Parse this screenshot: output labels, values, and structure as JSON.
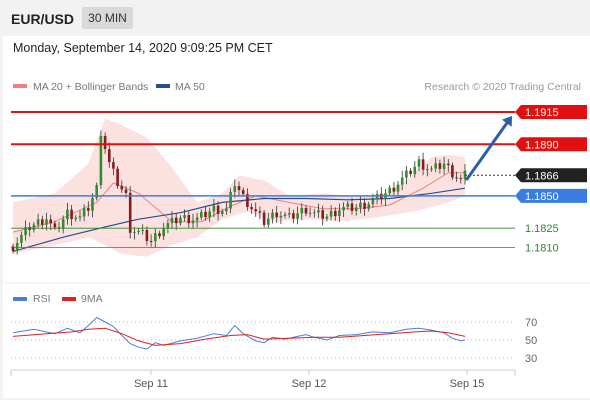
{
  "header": {
    "pair": "EUR/USD",
    "timeframe": "30 MIN"
  },
  "datetime": "Monday, September 14, 2020 9:09:25 PM CET",
  "credit": "Research © 2020 Trading Central",
  "legend": {
    "ma_bb": "MA 20 + Bollinger Bands",
    "ma50": "MA 50",
    "rsi": "RSI",
    "ma9": "9MA"
  },
  "colors": {
    "resistance": "#e01010",
    "support": "#3a7de0",
    "target_green": "#2a8a2a",
    "ma20": "#f08080",
    "bollinger_fill": "#fcdcdc",
    "ma50": "#2a4e8c",
    "arrow": "#2a5ea8",
    "rsi": "#4a7fd8",
    "ma9": "#e02020",
    "bull_candle": "#2f8f2f",
    "bear_candle": "#8b1a1a"
  },
  "chart_data": {
    "type": "candlestick",
    "instrument": "EUR/USD",
    "timeframe": "30 MIN",
    "x_tick_labels": [
      "Sep 11",
      "Sep 12",
      "Sep 15"
    ],
    "price_range": [
      1.1805,
      1.1922
    ],
    "levels": [
      {
        "label": "1.1915",
        "value": 1.1915,
        "kind": "resistance"
      },
      {
        "label": "1.1890",
        "value": 1.189,
        "kind": "resistance"
      },
      {
        "label": "1.1866",
        "value": 1.1866,
        "kind": "last"
      },
      {
        "label": "1.1850",
        "value": 1.185,
        "kind": "support"
      },
      {
        "label": "1.1825",
        "value": 1.1825,
        "kind": "target"
      },
      {
        "label": "1.1810",
        "value": 1.181,
        "kind": "target"
      }
    ],
    "arrow": {
      "from": 1.1863,
      "to": 1.1912,
      "direction": "up"
    },
    "close_path": [
      [
        0,
        1.1811
      ],
      [
        4,
        1.1826
      ],
      [
        8,
        1.1833
      ],
      [
        10,
        1.1822
      ],
      [
        13,
        1.1837
      ],
      [
        16,
        1.1833
      ],
      [
        18,
        1.1841
      ],
      [
        20,
        1.1856
      ],
      [
        21,
        1.19
      ],
      [
        23,
        1.1875
      ],
      [
        25,
        1.186
      ],
      [
        27,
        1.185
      ],
      [
        28,
        1.1825
      ],
      [
        31,
        1.182
      ],
      [
        33,
        1.1815
      ],
      [
        36,
        1.1826
      ],
      [
        40,
        1.1833
      ],
      [
        44,
        1.1832
      ],
      [
        48,
        1.184
      ],
      [
        51,
        1.1839
      ],
      [
        53,
        1.186
      ],
      [
        55,
        1.1849
      ],
      [
        58,
        1.1837
      ],
      [
        60,
        1.183
      ],
      [
        63,
        1.1837
      ],
      [
        66,
        1.1833
      ],
      [
        70,
        1.184
      ],
      [
        72,
        1.1836
      ],
      [
        75,
        1.1834
      ],
      [
        78,
        1.184
      ],
      [
        82,
        1.1841
      ],
      [
        86,
        1.1846
      ],
      [
        90,
        1.1854
      ],
      [
        94,
        1.1866
      ],
      [
        97,
        1.1876
      ],
      [
        100,
        1.187
      ],
      [
        103,
        1.1875
      ],
      [
        105,
        1.1868
      ],
      [
        107,
        1.1862
      ],
      [
        108,
        1.1866
      ]
    ],
    "ma20_path": [
      [
        0,
        1.1822
      ],
      [
        10,
        1.183
      ],
      [
        20,
        1.1845
      ],
      [
        24,
        1.186
      ],
      [
        30,
        1.1852
      ],
      [
        38,
        1.183
      ],
      [
        45,
        1.183
      ],
      [
        52,
        1.1842
      ],
      [
        58,
        1.185
      ],
      [
        66,
        1.1845
      ],
      [
        74,
        1.184
      ],
      [
        82,
        1.184
      ],
      [
        90,
        1.1843
      ],
      [
        98,
        1.1856
      ],
      [
        104,
        1.1868
      ],
      [
        108,
        1.1868
      ]
    ],
    "bb_upper_path": [
      [
        0,
        1.1845
      ],
      [
        10,
        1.1852
      ],
      [
        18,
        1.1875
      ],
      [
        22,
        1.191
      ],
      [
        26,
        1.1905
      ],
      [
        32,
        1.1895
      ],
      [
        38,
        1.1872
      ],
      [
        44,
        1.1845
      ],
      [
        50,
        1.1852
      ],
      [
        54,
        1.1866
      ],
      [
        60,
        1.1862
      ],
      [
        66,
        1.185
      ],
      [
        74,
        1.1852
      ],
      [
        80,
        1.185
      ],
      [
        88,
        1.1851
      ],
      [
        94,
        1.1862
      ],
      [
        100,
        1.188
      ],
      [
        104,
        1.1882
      ],
      [
        108,
        1.188
      ]
    ],
    "bb_lower_path": [
      [
        0,
        1.1805
      ],
      [
        10,
        1.1812
      ],
      [
        18,
        1.1818
      ],
      [
        22,
        1.1812
      ],
      [
        26,
        1.1805
      ],
      [
        32,
        1.1803
      ],
      [
        38,
        1.1812
      ],
      [
        44,
        1.1818
      ],
      [
        50,
        1.1832
      ],
      [
        56,
        1.1838
      ],
      [
        62,
        1.183
      ],
      [
        70,
        1.1832
      ],
      [
        78,
        1.183
      ],
      [
        88,
        1.1834
      ],
      [
        96,
        1.1838
      ],
      [
        104,
        1.1845
      ],
      [
        108,
        1.185
      ]
    ],
    "ma50_path": [
      [
        0,
        1.1807
      ],
      [
        12,
        1.1818
      ],
      [
        22,
        1.1826
      ],
      [
        30,
        1.1832
      ],
      [
        40,
        1.1837
      ],
      [
        50,
        1.1845
      ],
      [
        60,
        1.1848
      ],
      [
        70,
        1.1848
      ],
      [
        80,
        1.1847
      ],
      [
        90,
        1.1848
      ],
      [
        100,
        1.1852
      ],
      [
        108,
        1.1856
      ]
    ],
    "rsi": {
      "levels": [
        70,
        50,
        30
      ],
      "range": [
        20,
        80
      ],
      "rsi_path": [
        [
          0,
          58
        ],
        [
          5,
          62
        ],
        [
          10,
          57
        ],
        [
          13,
          63
        ],
        [
          16,
          58
        ],
        [
          18,
          66
        ],
        [
          20,
          75
        ],
        [
          22,
          70
        ],
        [
          24,
          65
        ],
        [
          26,
          55
        ],
        [
          28,
          46
        ],
        [
          30,
          42
        ],
        [
          32,
          40
        ],
        [
          34,
          47
        ],
        [
          36,
          44
        ],
        [
          40,
          49
        ],
        [
          44,
          52
        ],
        [
          48,
          57
        ],
        [
          51,
          55
        ],
        [
          53,
          66
        ],
        [
          55,
          57
        ],
        [
          58,
          49
        ],
        [
          60,
          47
        ],
        [
          62,
          53
        ],
        [
          65,
          51
        ],
        [
          68,
          54
        ],
        [
          70,
          56
        ],
        [
          72,
          53
        ],
        [
          75,
          50
        ],
        [
          78,
          55
        ],
        [
          82,
          56
        ],
        [
          86,
          59
        ],
        [
          90,
          58
        ],
        [
          94,
          62
        ],
        [
          97,
          63
        ],
        [
          100,
          61
        ],
        [
          103,
          58
        ],
        [
          105,
          52
        ],
        [
          107,
          49
        ],
        [
          108,
          50
        ]
      ],
      "ma9_path": [
        [
          0,
          54
        ],
        [
          8,
          57
        ],
        [
          14,
          59
        ],
        [
          18,
          62
        ],
        [
          22,
          63
        ],
        [
          26,
          57
        ],
        [
          30,
          49
        ],
        [
          34,
          44
        ],
        [
          40,
          46
        ],
        [
          46,
          51
        ],
        [
          52,
          55
        ],
        [
          56,
          56
        ],
        [
          60,
          51
        ],
        [
          66,
          52
        ],
        [
          72,
          53
        ],
        [
          78,
          53
        ],
        [
          84,
          55
        ],
        [
          90,
          57
        ],
        [
          96,
          59
        ],
        [
          100,
          60
        ],
        [
          104,
          58
        ],
        [
          108,
          54
        ]
      ]
    }
  }
}
